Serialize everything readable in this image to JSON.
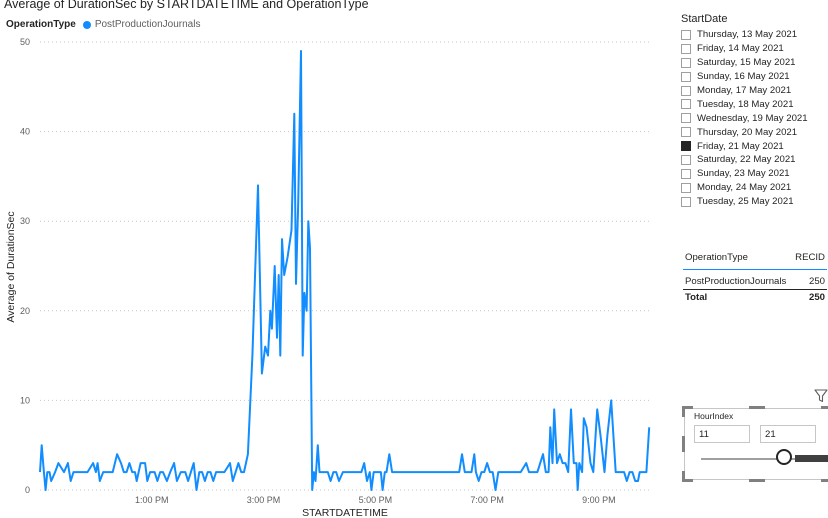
{
  "chart": {
    "title": "Average of DurationSec by STARTDATETIME and OperationType",
    "legend_title": "OperationType",
    "legend_item": "PostProductionJournals",
    "series_color": "#118DFF"
  },
  "chart_data": {
    "type": "line",
    "title": "Average of DurationSec by STARTDATETIME and OperationType",
    "xlabel": "STARTDATETIME",
    "ylabel": "Average of DurationSec",
    "x_ticks": [
      "1:00 PM",
      "3:00 PM",
      "5:00 PM",
      "7:00 PM",
      "9:00 PM"
    ],
    "y_ticks": [
      0,
      10,
      20,
      30,
      40,
      50
    ],
    "ylim": [
      0,
      50
    ],
    "xlim_hours": [
      11.0,
      21.95
    ],
    "grid": "horizontal dotted",
    "legend_position": "top-left",
    "series": [
      {
        "name": "PostProductionJournals",
        "points": [
          [
            11.0,
            2
          ],
          [
            11.03,
            5
          ],
          [
            11.07,
            2
          ],
          [
            11.1,
            0
          ],
          [
            11.13,
            2
          ],
          [
            11.17,
            2
          ],
          [
            11.2,
            1
          ],
          [
            11.27,
            2
          ],
          [
            11.33,
            3
          ],
          [
            11.43,
            2
          ],
          [
            11.5,
            3
          ],
          [
            11.55,
            1
          ],
          [
            11.6,
            2
          ],
          [
            11.67,
            2
          ],
          [
            11.75,
            2
          ],
          [
            11.85,
            2
          ],
          [
            11.95,
            3
          ],
          [
            12.0,
            2
          ],
          [
            12.03,
            3
          ],
          [
            12.07,
            1
          ],
          [
            12.13,
            2
          ],
          [
            12.2,
            2
          ],
          [
            12.3,
            2
          ],
          [
            12.38,
            4
          ],
          [
            12.45,
            3
          ],
          [
            12.5,
            2
          ],
          [
            12.55,
            2
          ],
          [
            12.6,
            3
          ],
          [
            12.65,
            2
          ],
          [
            12.7,
            2
          ],
          [
            12.73,
            1
          ],
          [
            12.8,
            3
          ],
          [
            12.88,
            3
          ],
          [
            12.92,
            1
          ],
          [
            12.97,
            2
          ],
          [
            13.05,
            2
          ],
          [
            13.1,
            1
          ],
          [
            13.15,
            2
          ],
          [
            13.2,
            2
          ],
          [
            13.27,
            1
          ],
          [
            13.33,
            2
          ],
          [
            13.4,
            3
          ],
          [
            13.45,
            1
          ],
          [
            13.52,
            2
          ],
          [
            13.6,
            2
          ],
          [
            13.65,
            1
          ],
          [
            13.7,
            2
          ],
          [
            13.75,
            3
          ],
          [
            13.8,
            0
          ],
          [
            13.85,
            2
          ],
          [
            13.9,
            2
          ],
          [
            13.95,
            1
          ],
          [
            14.0,
            2
          ],
          [
            14.05,
            2
          ],
          [
            14.1,
            1
          ],
          [
            14.15,
            2
          ],
          [
            14.2,
            2
          ],
          [
            14.3,
            2
          ],
          [
            14.4,
            3
          ],
          [
            14.45,
            1
          ],
          [
            14.5,
            2
          ],
          [
            14.55,
            3
          ],
          [
            14.6,
            2
          ],
          [
            14.65,
            2
          ],
          [
            14.72,
            4
          ],
          [
            14.8,
            15
          ],
          [
            14.9,
            34
          ],
          [
            14.97,
            13
          ],
          [
            15.03,
            16
          ],
          [
            15.08,
            15
          ],
          [
            15.12,
            20
          ],
          [
            15.15,
            18
          ],
          [
            15.2,
            25
          ],
          [
            15.24,
            17
          ],
          [
            15.27,
            24
          ],
          [
            15.3,
            15
          ],
          [
            15.33,
            28
          ],
          [
            15.37,
            24
          ],
          [
            15.43,
            26
          ],
          [
            15.5,
            29
          ],
          [
            15.55,
            42
          ],
          [
            15.58,
            23
          ],
          [
            15.62,
            32
          ],
          [
            15.67,
            49
          ],
          [
            15.7,
            15
          ],
          [
            15.73,
            22
          ],
          [
            15.77,
            20
          ],
          [
            15.8,
            30
          ],
          [
            15.83,
            27
          ],
          [
            15.87,
            0
          ],
          [
            15.9,
            2
          ],
          [
            15.93,
            1
          ],
          [
            15.97,
            5
          ],
          [
            16.0,
            2
          ],
          [
            16.03,
            2
          ],
          [
            16.08,
            2
          ],
          [
            16.15,
            2
          ],
          [
            16.2,
            1
          ],
          [
            16.25,
            2
          ],
          [
            16.3,
            2
          ],
          [
            16.35,
            1
          ],
          [
            16.42,
            2
          ],
          [
            16.5,
            2
          ],
          [
            16.58,
            2
          ],
          [
            16.67,
            2
          ],
          [
            16.75,
            2
          ],
          [
            16.8,
            3
          ],
          [
            16.85,
            1
          ],
          [
            16.9,
            2
          ],
          [
            16.93,
            0
          ],
          [
            16.97,
            2
          ],
          [
            17.0,
            2
          ],
          [
            17.05,
            2
          ],
          [
            17.1,
            2
          ],
          [
            17.13,
            0
          ],
          [
            17.17,
            2
          ],
          [
            17.2,
            2
          ],
          [
            17.25,
            4
          ],
          [
            17.3,
            2
          ],
          [
            17.4,
            2
          ],
          [
            17.5,
            2
          ],
          [
            17.6,
            2
          ],
          [
            17.7,
            2
          ],
          [
            17.8,
            2
          ],
          [
            17.9,
            2
          ],
          [
            18.0,
            2
          ],
          [
            18.1,
            2
          ],
          [
            18.2,
            2
          ],
          [
            18.3,
            2
          ],
          [
            18.4,
            2
          ],
          [
            18.5,
            2
          ],
          [
            18.55,
            4
          ],
          [
            18.6,
            2
          ],
          [
            18.65,
            2
          ],
          [
            18.72,
            2
          ],
          [
            18.77,
            4
          ],
          [
            18.8,
            2
          ],
          [
            18.85,
            1
          ],
          [
            18.9,
            2
          ],
          [
            18.95,
            2
          ],
          [
            19.0,
            3
          ],
          [
            19.05,
            2
          ],
          [
            19.1,
            2
          ],
          [
            19.15,
            0
          ],
          [
            19.2,
            2
          ],
          [
            19.3,
            2
          ],
          [
            19.4,
            2
          ],
          [
            19.5,
            2
          ],
          [
            19.6,
            2
          ],
          [
            19.7,
            3
          ],
          [
            19.75,
            2
          ],
          [
            19.8,
            2
          ],
          [
            19.9,
            2
          ],
          [
            20.0,
            4
          ],
          [
            20.05,
            2
          ],
          [
            20.1,
            2
          ],
          [
            20.13,
            7
          ],
          [
            20.17,
            3
          ],
          [
            20.2,
            9
          ],
          [
            20.25,
            3
          ],
          [
            20.3,
            4
          ],
          [
            20.35,
            3
          ],
          [
            20.4,
            3
          ],
          [
            20.45,
            2
          ],
          [
            20.5,
            9
          ],
          [
            20.55,
            3
          ],
          [
            20.6,
            3
          ],
          [
            20.62,
            0
          ],
          [
            20.65,
            3
          ],
          [
            20.7,
            2
          ],
          [
            20.73,
            8
          ],
          [
            20.78,
            7
          ],
          [
            20.85,
            3
          ],
          [
            20.9,
            2
          ],
          [
            20.97,
            9
          ],
          [
            21.03,
            6
          ],
          [
            21.1,
            2
          ],
          [
            21.15,
            6
          ],
          [
            21.22,
            10
          ],
          [
            21.3,
            2
          ],
          [
            21.35,
            2
          ],
          [
            21.4,
            2
          ],
          [
            21.45,
            2
          ],
          [
            21.5,
            1
          ],
          [
            21.55,
            2
          ],
          [
            21.6,
            2
          ],
          [
            21.65,
            1
          ],
          [
            21.7,
            1
          ],
          [
            21.73,
            2
          ],
          [
            21.8,
            2
          ],
          [
            21.85,
            2
          ],
          [
            21.9,
            7
          ]
        ]
      }
    ]
  },
  "start_date_slicer": {
    "title": "StartDate",
    "items": [
      {
        "label": "Thursday, 13 May 2021",
        "checked": false
      },
      {
        "label": "Friday, 14 May 2021",
        "checked": false
      },
      {
        "label": "Saturday, 15 May 2021",
        "checked": false
      },
      {
        "label": "Sunday, 16 May 2021",
        "checked": false
      },
      {
        "label": "Monday, 17 May 2021",
        "checked": false
      },
      {
        "label": "Tuesday, 18 May 2021",
        "checked": false
      },
      {
        "label": "Wednesday, 19 May 2021",
        "checked": false
      },
      {
        "label": "Thursday, 20 May 2021",
        "checked": false
      },
      {
        "label": "Friday, 21 May 2021",
        "checked": true
      },
      {
        "label": "Saturday, 22 May 2021",
        "checked": false
      },
      {
        "label": "Sunday, 23 May 2021",
        "checked": false
      },
      {
        "label": "Monday, 24 May 2021",
        "checked": false
      },
      {
        "label": "Tuesday, 25 May 2021",
        "checked": false
      }
    ]
  },
  "table": {
    "col1": "OperationType",
    "col2": "RECID",
    "rows": [
      {
        "type": "PostProductionJournals",
        "recid": "250"
      }
    ],
    "total_label": "Total",
    "total_value": "250"
  },
  "hour_slicer": {
    "title": "HourIndex",
    "min_value": "11",
    "max_value": "21"
  }
}
